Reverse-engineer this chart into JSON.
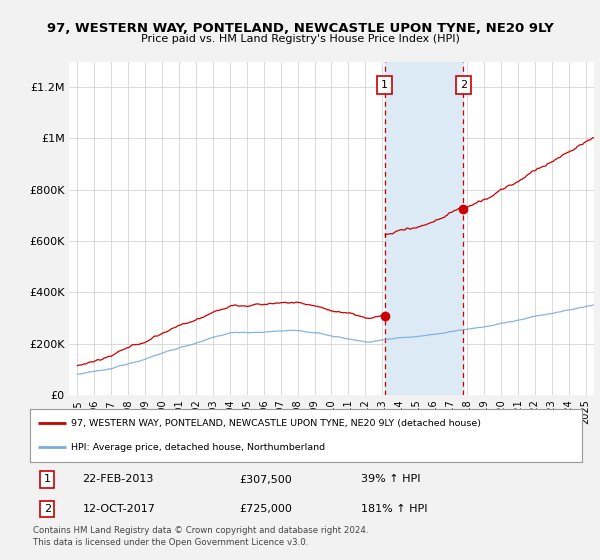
{
  "title1": "97, WESTERN WAY, PONTELAND, NEWCASTLE UPON TYNE, NE20 9LY",
  "title2": "Price paid vs. HM Land Registry's House Price Index (HPI)",
  "ylim": [
    0,
    1300000
  ],
  "yticks": [
    0,
    200000,
    400000,
    600000,
    800000,
    1000000,
    1200000
  ],
  "ytick_labels": [
    "£0",
    "£200K",
    "£400K",
    "£600K",
    "£800K",
    "£1M",
    "£1.2M"
  ],
  "xmin": 1995.0,
  "xmax": 2025.5,
  "sale1_year": 2013.13,
  "sale1_price": 307500,
  "sale2_year": 2017.79,
  "sale2_price": 725000,
  "legend_property": "97, WESTERN WAY, PONTELAND, NEWCASTLE UPON TYNE, NE20 9LY (detached house)",
  "legend_hpi": "HPI: Average price, detached house, Northumberland",
  "annotation1": [
    "1",
    "22-FEB-2013",
    "£307,500",
    "39% ↑ HPI"
  ],
  "annotation2": [
    "2",
    "12-OCT-2017",
    "£725,000",
    "181% ↑ HPI"
  ],
  "footnote": "Contains HM Land Registry data © Crown copyright and database right 2024.\nThis data is licensed under the Open Government Licence v3.0.",
  "bg_color": "#f2f2f2",
  "plot_bg": "#ffffff",
  "shade_color": "#dceaf5",
  "red_color": "#cc0000",
  "blue_color": "#7aacdc",
  "grid_color": "#cccccc"
}
